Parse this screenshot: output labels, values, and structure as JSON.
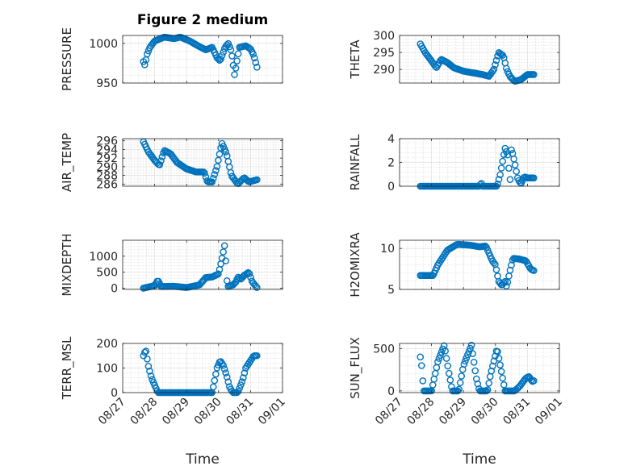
{
  "figure_title": "Figure 2 medium",
  "x_axis_label": "Time",
  "marker_color": "#0072BD",
  "date_ticks": [
    "08/27",
    "08/28",
    "08/29",
    "08/30",
    "08/31",
    "09/01"
  ],
  "chart_data": [
    {
      "type": "scatter",
      "name": "pressure",
      "title": "Figure 2 medium",
      "xlabel": "",
      "ylabel": "PRESSURE",
      "xlim": [
        "08/27",
        "09/01"
      ],
      "ylim": [
        950,
        1010
      ],
      "yticks": [
        950,
        1000
      ],
      "ytick_labels": [
        "950",
        "1000"
      ],
      "grid": true,
      "keyframes": [
        [
          0.65,
          977
        ],
        [
          0.7,
          972
        ],
        [
          0.75,
          985
        ],
        [
          0.85,
          995
        ],
        [
          1.0,
          1003
        ],
        [
          1.3,
          1008
        ],
        [
          1.6,
          1006
        ],
        [
          1.8,
          1008
        ],
        [
          2.1,
          1003
        ],
        [
          2.4,
          996
        ],
        [
          2.6,
          992
        ],
        [
          2.8,
          995
        ],
        [
          2.95,
          982
        ],
        [
          3.05,
          978
        ],
        [
          3.2,
          995
        ],
        [
          3.3,
          1000
        ],
        [
          3.4,
          990
        ],
        [
          3.45,
          975
        ],
        [
          3.5,
          960
        ],
        [
          3.55,
          972
        ],
        [
          3.65,
          995
        ],
        [
          3.85,
          997
        ],
        [
          4.0,
          993
        ],
        [
          4.1,
          985
        ],
        [
          4.2,
          970
        ]
      ],
      "x_start": 0.65,
      "x_end": 4.2,
      "count": 92
    },
    {
      "type": "scatter",
      "name": "theta",
      "xlabel": "",
      "ylabel": "THETA",
      "xlim": [
        "08/27",
        "09/01"
      ],
      "ylim": [
        286,
        300
      ],
      "yticks": [
        290,
        295,
        300
      ],
      "ytick_labels": [
        "290",
        "295",
        "300"
      ],
      "grid": true,
      "keyframes": [
        [
          0.65,
          297.5
        ],
        [
          0.8,
          295
        ],
        [
          1.0,
          292.5
        ],
        [
          1.15,
          290.5
        ],
        [
          1.3,
          293
        ],
        [
          1.5,
          292
        ],
        [
          1.7,
          290.5
        ],
        [
          2.0,
          289.5
        ],
        [
          2.3,
          289
        ],
        [
          2.6,
          288.5
        ],
        [
          2.8,
          288
        ],
        [
          2.95,
          290
        ],
        [
          3.1,
          295
        ],
        [
          3.25,
          294
        ],
        [
          3.35,
          290
        ],
        [
          3.45,
          288
        ],
        [
          3.6,
          286.5
        ],
        [
          3.8,
          287
        ],
        [
          4.0,
          288.5
        ],
        [
          4.2,
          288.5
        ]
      ],
      "x_start": 0.65,
      "x_end": 4.2,
      "count": 92
    },
    {
      "type": "scatter",
      "name": "air_temp",
      "xlabel": "",
      "ylabel": "AIR_TEMP",
      "xlim": [
        "08/27",
        "09/01"
      ],
      "ylim": [
        285.5,
        296.5
      ],
      "yticks": [
        286,
        288,
        290,
        292,
        294,
        296
      ],
      "ytick_labels": [
        "286",
        "288",
        "290",
        "292",
        "294",
        "296"
      ],
      "grid": true,
      "keyframes": [
        [
          0.65,
          295.8
        ],
        [
          0.8,
          293.5
        ],
        [
          1.0,
          291.5
        ],
        [
          1.15,
          290.3
        ],
        [
          1.3,
          293.8
        ],
        [
          1.5,
          293
        ],
        [
          1.7,
          291
        ],
        [
          2.0,
          289.5
        ],
        [
          2.3,
          288.8
        ],
        [
          2.55,
          288.8
        ],
        [
          2.65,
          286.5
        ],
        [
          2.8,
          286.5
        ],
        [
          2.95,
          290
        ],
        [
          3.1,
          295.5
        ],
        [
          3.25,
          293
        ],
        [
          3.4,
          288
        ],
        [
          3.6,
          286
        ],
        [
          3.8,
          287.5
        ],
        [
          3.95,
          286.5
        ],
        [
          4.2,
          287
        ]
      ],
      "x_start": 0.65,
      "x_end": 4.2,
      "count": 92
    },
    {
      "type": "scatter",
      "name": "rainfall",
      "xlabel": "",
      "ylabel": "RAINFALL",
      "xlim": [
        "08/27",
        "09/01"
      ],
      "ylim": [
        0,
        4
      ],
      "yticks": [
        0,
        2,
        4
      ],
      "ytick_labels": [
        "0",
        "2",
        "4"
      ],
      "grid": true,
      "keyframes": [
        [
          0.65,
          0
        ],
        [
          2.5,
          0
        ],
        [
          2.55,
          0.3
        ],
        [
          2.6,
          0
        ],
        [
          3.05,
          0
        ],
        [
          3.15,
          1
        ],
        [
          3.3,
          3.2
        ],
        [
          3.4,
          2.5
        ],
        [
          3.45,
          0
        ],
        [
          3.5,
          3.2
        ],
        [
          3.6,
          2
        ],
        [
          3.7,
          0.6
        ],
        [
          3.8,
          0.2
        ],
        [
          3.9,
          0.8
        ],
        [
          4.0,
          0.7
        ],
        [
          4.2,
          0.7
        ]
      ],
      "x_start": 0.65,
      "x_end": 4.2,
      "count": 92
    },
    {
      "type": "scatter",
      "name": "mixdepth",
      "xlabel": "",
      "ylabel": "MIXDEPTH",
      "xlim": [
        "08/27",
        "09/01"
      ],
      "ylim": [
        -40,
        1500
      ],
      "yticks": [
        0,
        500,
        1000
      ],
      "ytick_labels": [
        "0",
        "500",
        "1000"
      ],
      "grid": true,
      "keyframes": [
        [
          0.65,
          0
        ],
        [
          1.0,
          80
        ],
        [
          1.1,
          250
        ],
        [
          1.2,
          50
        ],
        [
          1.6,
          60
        ],
        [
          2.0,
          20
        ],
        [
          2.4,
          100
        ],
        [
          2.6,
          330
        ],
        [
          2.8,
          350
        ],
        [
          3.0,
          450
        ],
        [
          3.1,
          900
        ],
        [
          3.2,
          1400
        ],
        [
          3.25,
          300
        ],
        [
          3.3,
          50
        ],
        [
          3.45,
          100
        ],
        [
          3.55,
          200
        ],
        [
          3.6,
          350
        ],
        [
          3.7,
          280
        ],
        [
          3.8,
          400
        ],
        [
          3.95,
          500
        ],
        [
          4.05,
          200
        ],
        [
          4.2,
          20
        ]
      ],
      "x_start": 0.65,
      "x_end": 4.2,
      "count": 92
    },
    {
      "type": "scatter",
      "name": "h2omixra",
      "xlabel": "",
      "ylabel": "H2OMIXRA",
      "xlim": [
        "08/27",
        "09/01"
      ],
      "ylim": [
        5,
        11
      ],
      "yticks": [
        5,
        10
      ],
      "ytick_labels": [
        "5",
        "10"
      ],
      "grid": true,
      "keyframes": [
        [
          0.65,
          6.7
        ],
        [
          1.05,
          6.7
        ],
        [
          1.2,
          8
        ],
        [
          1.5,
          9.8
        ],
        [
          1.8,
          10.5
        ],
        [
          2.2,
          10.4
        ],
        [
          2.5,
          10.2
        ],
        [
          2.7,
          10.3
        ],
        [
          2.9,
          8.5
        ],
        [
          3.0,
          8
        ],
        [
          3.1,
          6
        ],
        [
          3.2,
          5.5
        ],
        [
          3.3,
          6
        ],
        [
          3.35,
          5.3
        ],
        [
          3.45,
          7.2
        ],
        [
          3.55,
          8.8
        ],
        [
          3.75,
          8.7
        ],
        [
          3.95,
          8.5
        ],
        [
          4.1,
          7.5
        ],
        [
          4.2,
          7.3
        ]
      ],
      "x_start": 0.65,
      "x_end": 4.2,
      "count": 92
    },
    {
      "type": "scatter",
      "name": "terr_msl",
      "xlabel": "",
      "ylabel": "TERR_MSL",
      "xlim": [
        "08/27",
        "09/01"
      ],
      "ylim": [
        0,
        200
      ],
      "yticks": [
        0,
        100,
        200
      ],
      "ytick_labels": [
        "0",
        "100",
        "200"
      ],
      "grid": true,
      "keyframes": [
        [
          0.65,
          150
        ],
        [
          0.72,
          175
        ],
        [
          0.8,
          110
        ],
        [
          0.9,
          60
        ],
        [
          1.0,
          30
        ],
        [
          1.1,
          0
        ],
        [
          2.6,
          0
        ],
        [
          2.8,
          0
        ],
        [
          2.95,
          100
        ],
        [
          3.05,
          130
        ],
        [
          3.15,
          110
        ],
        [
          3.25,
          70
        ],
        [
          3.35,
          20
        ],
        [
          3.45,
          0
        ],
        [
          3.6,
          0
        ],
        [
          3.75,
          50
        ],
        [
          3.85,
          100
        ],
        [
          4.0,
          130
        ],
        [
          4.1,
          150
        ],
        [
          4.2,
          150
        ]
      ],
      "x_start": 0.65,
      "x_end": 4.2,
      "count": 92
    },
    {
      "type": "scatter",
      "name": "sun_flux",
      "xlabel": "",
      "ylabel": "SUN_FLUX",
      "xlim": [
        "08/27",
        "09/01"
      ],
      "ylim": [
        -20,
        560
      ],
      "yticks": [
        0,
        500
      ],
      "ytick_labels": [
        "0",
        "500"
      ],
      "grid": true,
      "keyframes": [
        [
          0.65,
          400
        ],
        [
          0.7,
          270
        ],
        [
          0.75,
          0
        ],
        [
          1.0,
          0
        ],
        [
          1.2,
          350
        ],
        [
          1.4,
          540
        ],
        [
          1.55,
          200
        ],
        [
          1.65,
          0
        ],
        [
          1.85,
          0
        ],
        [
          2.0,
          300
        ],
        [
          2.25,
          540
        ],
        [
          2.4,
          150
        ],
        [
          2.5,
          0
        ],
        [
          2.75,
          0
        ],
        [
          2.85,
          200
        ],
        [
          3.05,
          500
        ],
        [
          3.2,
          200
        ],
        [
          3.3,
          0
        ],
        [
          3.6,
          0
        ],
        [
          3.75,
          50
        ],
        [
          3.95,
          150
        ],
        [
          4.05,
          170
        ],
        [
          4.15,
          110
        ],
        [
          4.2,
          120
        ]
      ],
      "x_start": 0.65,
      "x_end": 4.2,
      "count": 92
    }
  ]
}
